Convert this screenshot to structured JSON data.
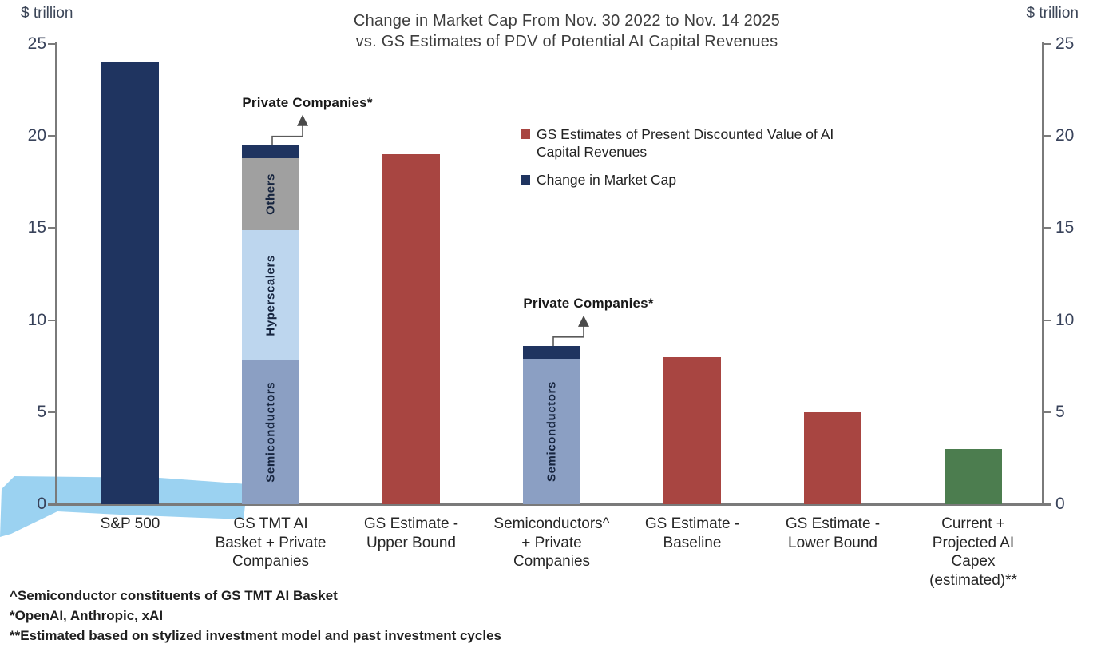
{
  "colors": {
    "navy": "#1f3460",
    "red": "#a84541",
    "green": "#4c7d4f",
    "steel_blue": "#8b9fc3",
    "light_blue": "#bdd6ee",
    "gray": "#a0a0a0",
    "axis": "#7a7a7a",
    "highlight": "#79c3ec",
    "arrow": "#5a5a5a"
  },
  "header": {
    "unit_left": "$ trillion",
    "unit_right": "$ trillion"
  },
  "chart_data": {
    "type": "bar",
    "title": "Change in Market Cap From Nov. 30 2022 to Nov. 14 2025\nvs. GS Estimates of PDV of Potential AI Capital Revenues",
    "ylabel": "$ trillion",
    "ylim": [
      0,
      25
    ],
    "yticks": [
      0,
      5,
      10,
      15,
      20,
      25
    ],
    "grid": false,
    "legend_position": "inside-upper-right",
    "bars": [
      {
        "category": "S&P 500",
        "total": 24.0,
        "segments": [
          {
            "name": "Change in Market Cap",
            "value": 24.0,
            "color": "navy"
          }
        ]
      },
      {
        "category": "GS TMT AI\nBasket + Private\nCompanies",
        "total": 19.5,
        "annotation": "Private Companies*",
        "segments": [
          {
            "name": "Semiconductors",
            "value": 7.8,
            "color": "steel_blue",
            "show_label": true
          },
          {
            "name": "Hyperscalers",
            "value": 7.1,
            "color": "light_blue",
            "show_label": true
          },
          {
            "name": "Others",
            "value": 3.9,
            "color": "gray",
            "show_label": true
          },
          {
            "name": "Private Companies",
            "value": 0.7,
            "color": "navy",
            "show_label": false
          }
        ]
      },
      {
        "category": "GS Estimate -\nUpper Bound",
        "total": 19.0,
        "segments": [
          {
            "name": "GS Estimate - Upper Bound",
            "value": 19.0,
            "color": "red"
          }
        ]
      },
      {
        "category": "Semiconductors^\n+ Private\nCompanies",
        "total": 8.6,
        "annotation": "Private Companies*",
        "segments": [
          {
            "name": "Semiconductors",
            "value": 7.9,
            "color": "steel_blue",
            "show_label": true
          },
          {
            "name": "Private Companies",
            "value": 0.7,
            "color": "navy",
            "show_label": false
          }
        ]
      },
      {
        "category": "GS Estimate -\nBaseline",
        "total": 8.0,
        "segments": [
          {
            "name": "GS Estimate - Baseline",
            "value": 8.0,
            "color": "red"
          }
        ]
      },
      {
        "category": "GS Estimate -\nLower Bound",
        "total": 5.0,
        "segments": [
          {
            "name": "GS Estimate - Lower Bound",
            "value": 5.0,
            "color": "red"
          }
        ]
      },
      {
        "category": "Current +\nProjected AI\nCapex\n(estimated)**",
        "total": 3.0,
        "segments": [
          {
            "name": "Current + Projected AI Capex (estimated)",
            "value": 3.0,
            "color": "green"
          }
        ]
      }
    ]
  },
  "legend": {
    "items": [
      {
        "label": "GS Estimates of Present Discounted Value of AI\nCapital Revenues",
        "color": "red"
      },
      {
        "label": "Change in Market Cap",
        "color": "navy"
      }
    ]
  },
  "footnotes": [
    "^Semiconductor constituents of GS TMT AI Basket",
    "*OpenAI, Anthropic, xAI",
    "**Estimated based on stylized investment model and past investment cycles"
  ]
}
